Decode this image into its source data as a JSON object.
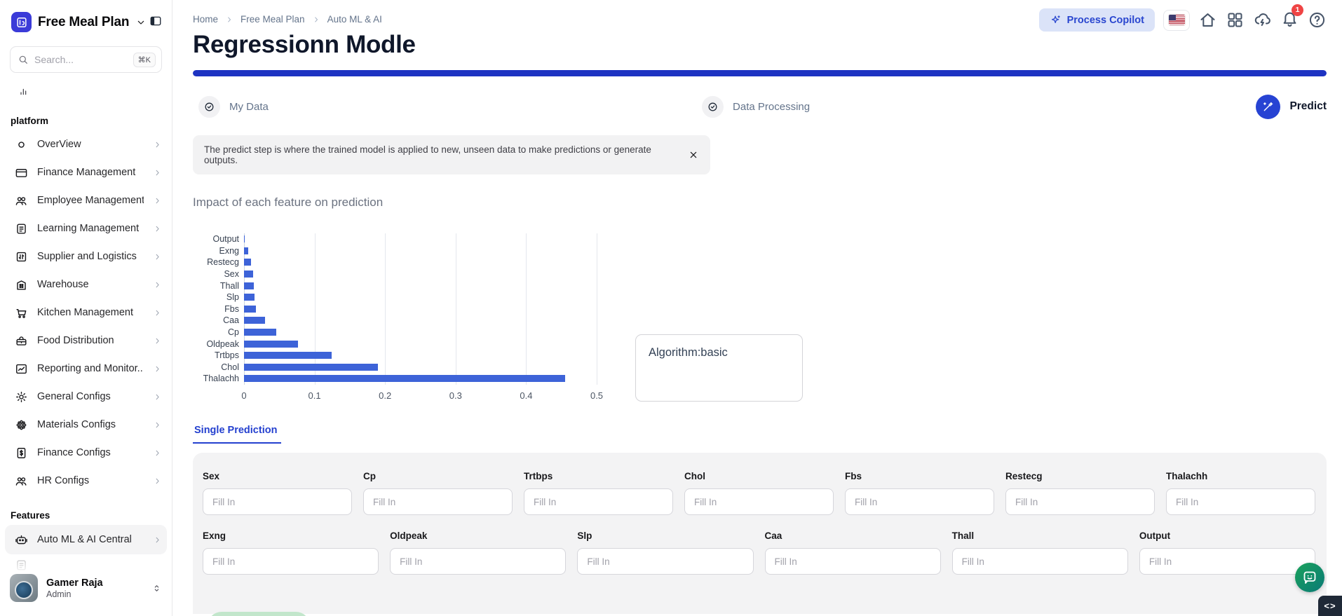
{
  "app": {
    "name": "Free Meal Plan"
  },
  "sidebar": {
    "search": {
      "placeholder": "Search...",
      "shortcut": "⌘K"
    },
    "section_platform": "platform",
    "items": [
      {
        "label": "OverView",
        "icon": "dot"
      },
      {
        "label": "Finance Management",
        "icon": "card"
      },
      {
        "label": "Employee Management",
        "icon": "users"
      },
      {
        "label": "Learning Management",
        "icon": "note"
      },
      {
        "label": "Supplier and Logistics",
        "icon": "exchange"
      },
      {
        "label": "Warehouse",
        "icon": "building"
      },
      {
        "label": "Kitchen Management",
        "icon": "cart"
      },
      {
        "label": "Food Distribution",
        "icon": "lunchbox"
      },
      {
        "label": "Reporting and Monitor...",
        "icon": "chartline"
      },
      {
        "label": "General Configs",
        "icon": "gear"
      },
      {
        "label": "Materials Configs",
        "icon": "gearcluster"
      },
      {
        "label": "Finance Configs",
        "icon": "docdollar"
      },
      {
        "label": "HR Configs",
        "icon": "users"
      }
    ],
    "section_features": "Features",
    "feature_items": [
      {
        "label": "Auto ML & AI Central",
        "icon": "bot",
        "active": true
      }
    ],
    "user": {
      "name": "Gamer Raja",
      "role": "Admin"
    }
  },
  "header": {
    "breadcrumb": [
      "Home",
      "Free Meal Plan",
      "Auto ML & AI"
    ],
    "copilot_label": "Process Copilot",
    "notification_count": "1",
    "page_title": "Regressionn Modle"
  },
  "steps": [
    {
      "label": "My Data",
      "state": "done"
    },
    {
      "label": "Data Processing",
      "state": "done"
    },
    {
      "label": "Predict",
      "state": "active"
    }
  ],
  "banner": {
    "text": "The predict step is where the trained model is applied to new, unseen data to make predictions or generate outputs."
  },
  "chart_data": {
    "type": "bar",
    "orientation": "horizontal",
    "title": "Impact of each feature on prediction",
    "categories": [
      "Output",
      "Exng",
      "Restecg",
      "Sex",
      "Thall",
      "Slp",
      "Fbs",
      "Caa",
      "Cp",
      "Oldpeak",
      "Trtbps",
      "Chol",
      "Thalachh"
    ],
    "values": [
      0.001,
      0.006,
      0.01,
      0.013,
      0.014,
      0.015,
      0.017,
      0.03,
      0.046,
      0.077,
      0.124,
      0.19,
      0.455
    ],
    "xlabel": "",
    "ylabel": "",
    "xlim": [
      0,
      0.5
    ],
    "xticks": [
      "0",
      "0.1",
      "0.2",
      "0.3",
      "0.4",
      "0.5"
    ],
    "grid": true,
    "bar_color": "#3d63d8",
    "legend": false
  },
  "algorithm_box": {
    "text": "Algorithm:basic"
  },
  "tabs": [
    {
      "label": "Single Prediction",
      "active": true
    }
  ],
  "form": {
    "placeholder": "Fill In",
    "row1": [
      "Sex",
      "Cp",
      "Trtbps",
      "Chol",
      "Fbs",
      "Restecg",
      "Thalachh"
    ],
    "row2": [
      "Exng",
      "Oldpeak",
      "Slp",
      "Caa",
      "Thall",
      "Output"
    ]
  },
  "fab": {
    "code_label": "<>"
  },
  "colors": {
    "accent_blue": "#2743d3",
    "progress_blue": "#1d33c2",
    "bar_blue": "#3d63d8",
    "copilot_bg": "#dbe3f8",
    "badge_red": "#ef4444",
    "chat_green": "#1ba25c"
  }
}
